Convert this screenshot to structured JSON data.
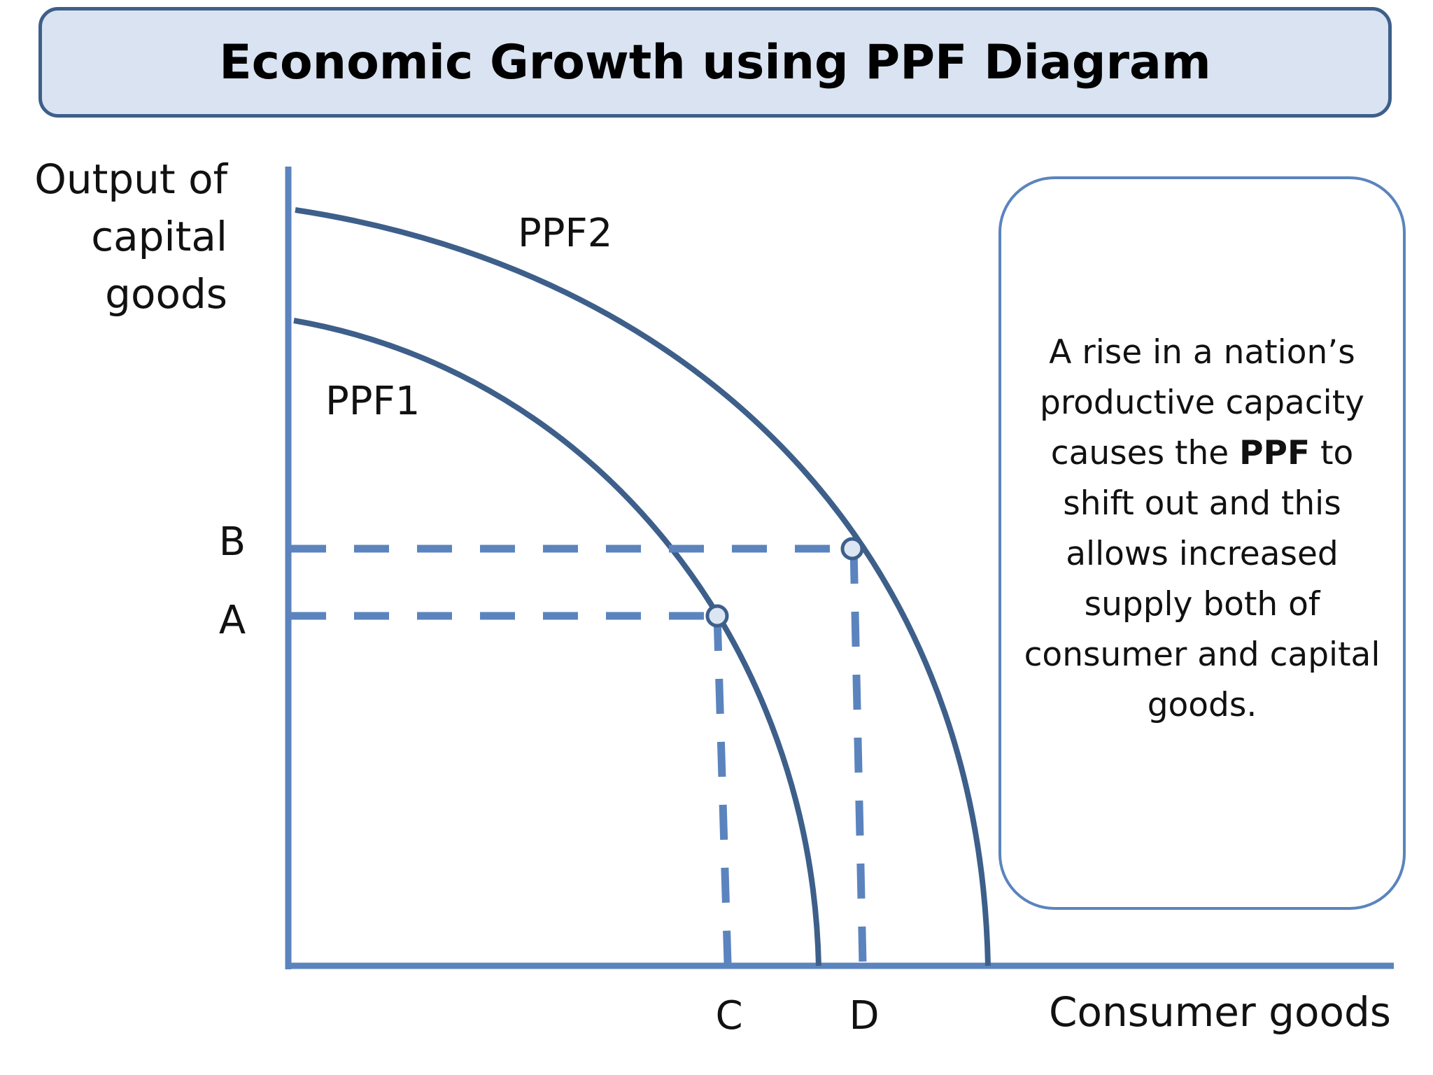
{
  "title": "Economic Growth using PPF Diagram",
  "diagram": {
    "y_axis_label_lines": [
      "Output of",
      "capital",
      "goods"
    ],
    "x_axis_label": "Consumer goods",
    "curve_labels": {
      "ppf1": "PPF1",
      "ppf2": "PPF2"
    },
    "point_labels": {
      "a": "A",
      "b": "B",
      "c": "C",
      "d": "D"
    }
  },
  "info_box": {
    "text_before": "A rise in a nation’s productive capacity causes the",
    "text_bold": "PPF",
    "text_after": "to shift out and this allows increased supply both of consumer and capital goods."
  },
  "colors": {
    "axis": "#5b84be",
    "curve": "#3d5f8a",
    "dashes": "#5b84be",
    "title_fill": "#d9e3f1",
    "title_border": "#3d5f8a"
  }
}
